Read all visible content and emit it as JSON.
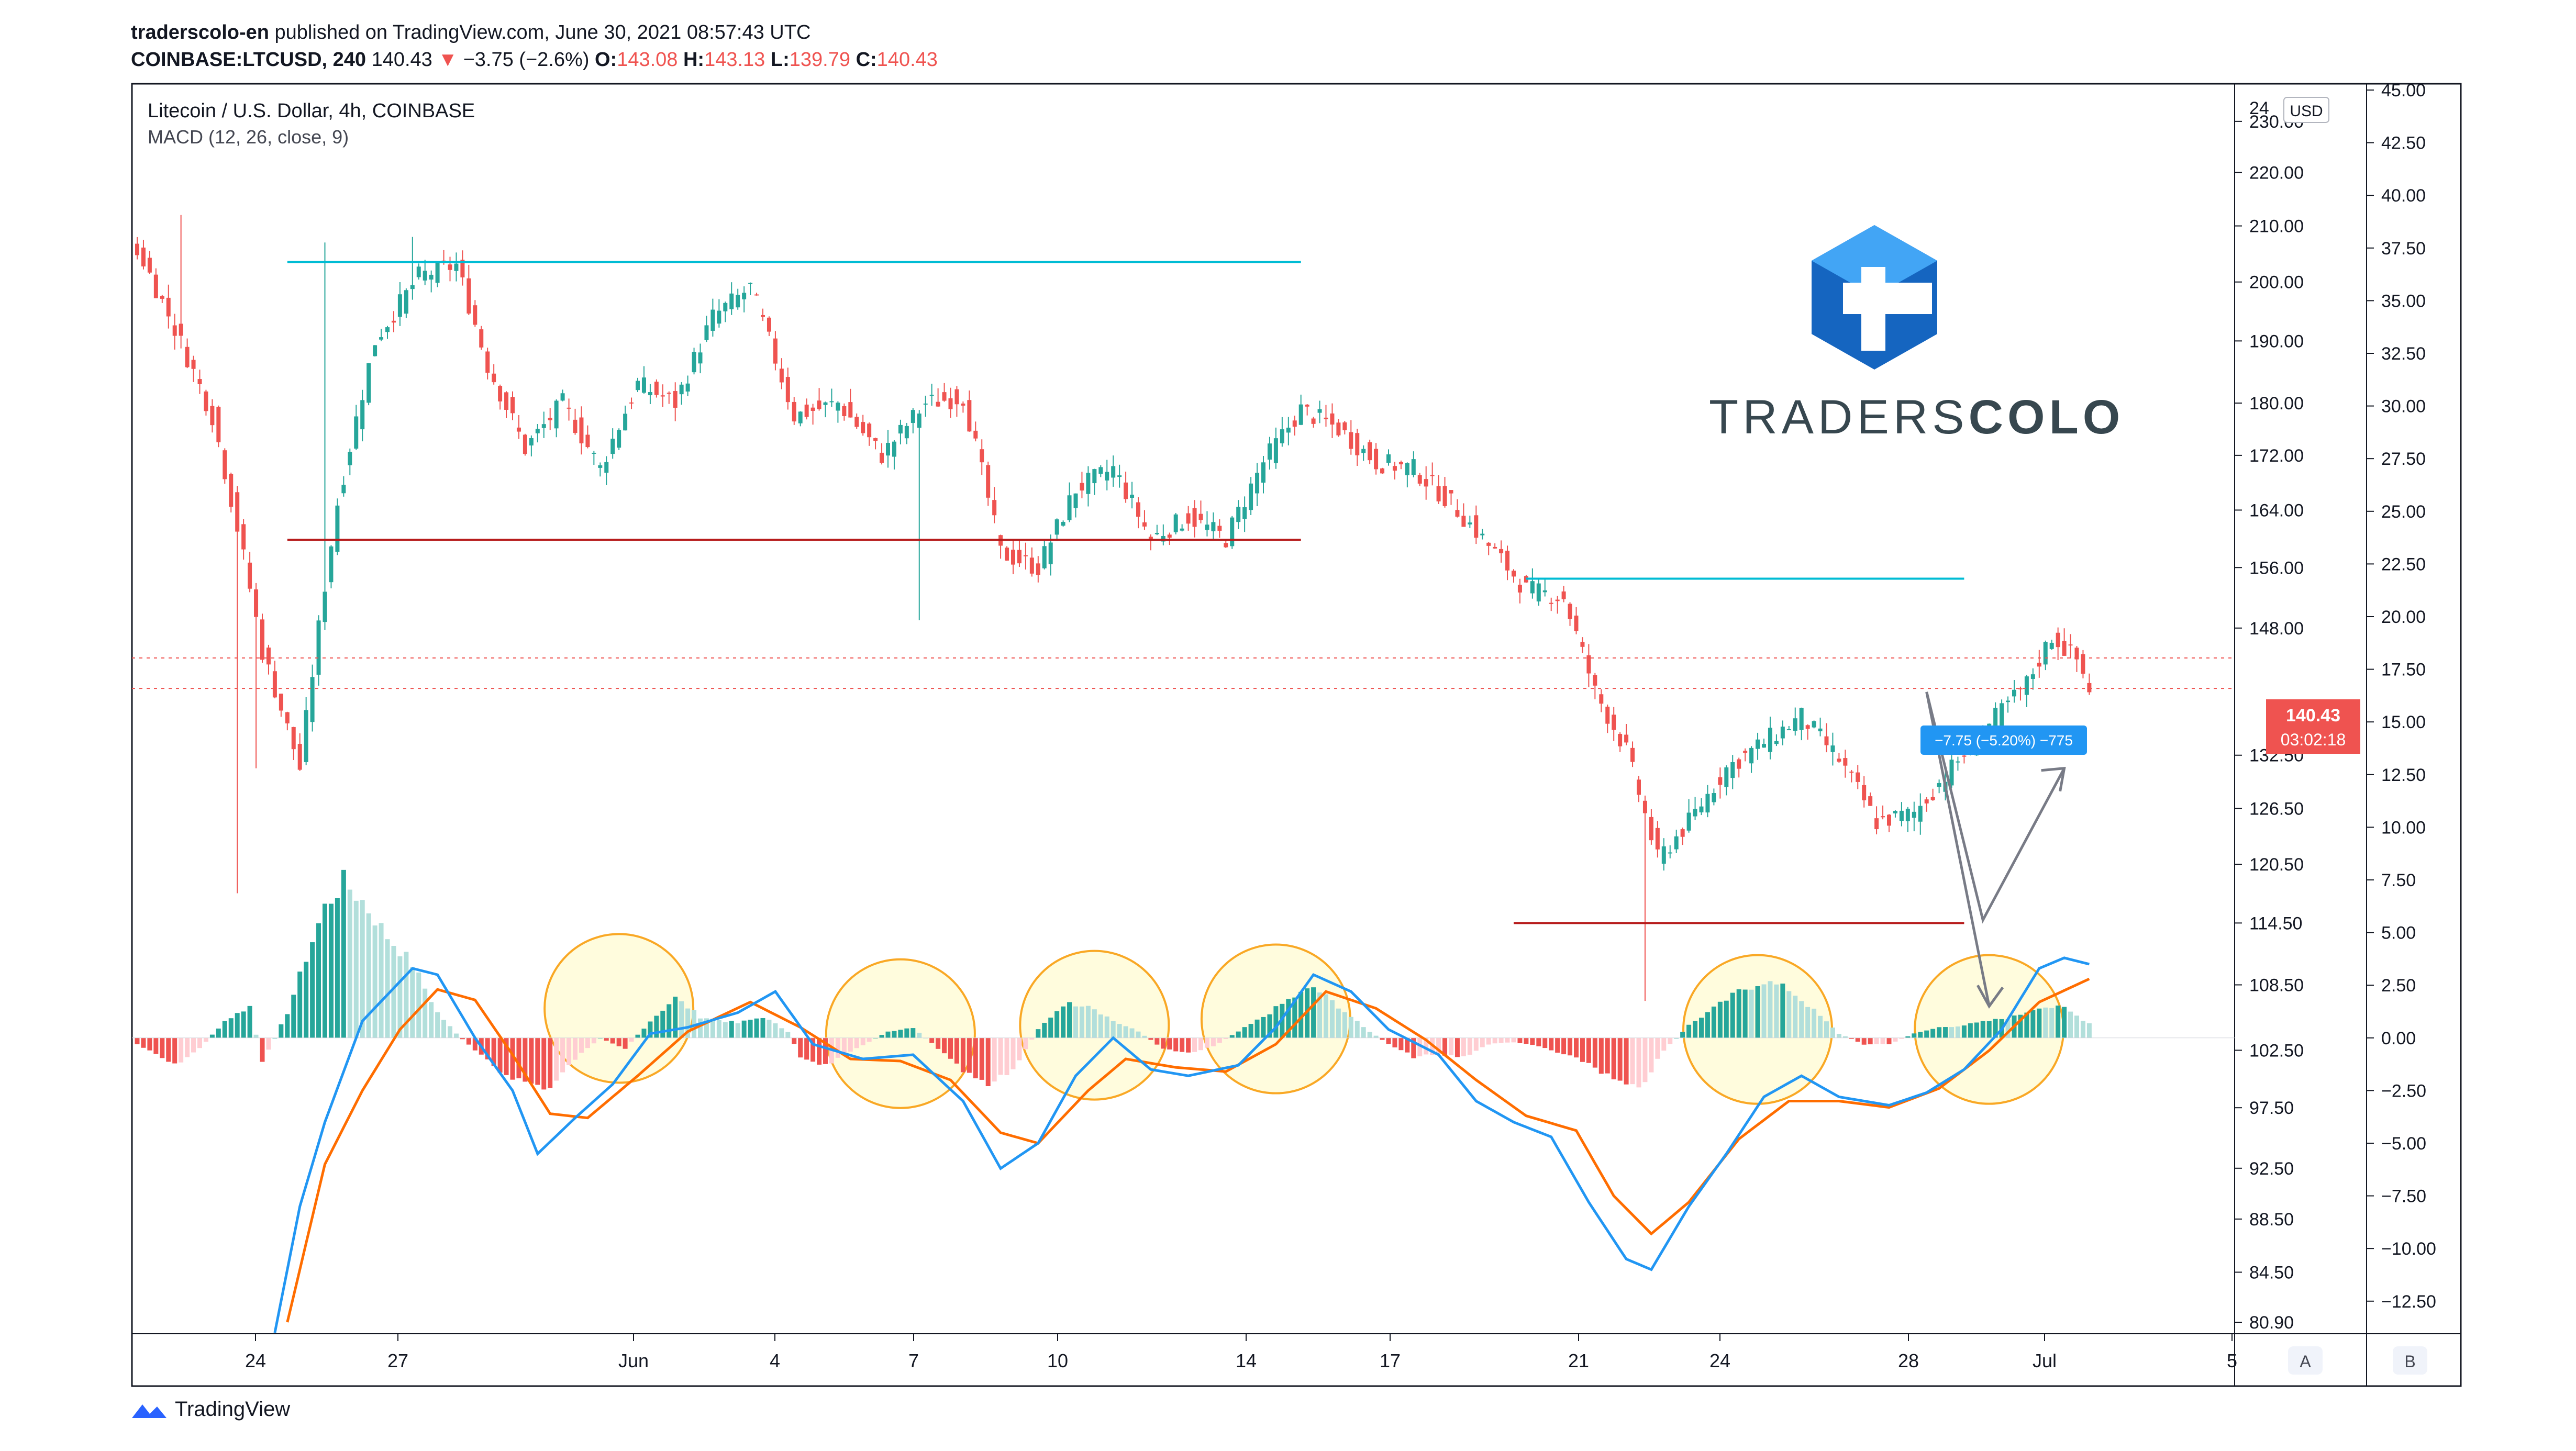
{
  "header": {
    "publisher": "traderscolo-en",
    "published_text": "published on TradingView.com, June 30, 2021 08:57:43 UTC",
    "symbol": "COINBASE:LTCUSD, 240",
    "last": "140.43",
    "change": "−3.75 (−2.6%)",
    "o_label": "O:",
    "o_value": "143.08",
    "h_label": "H:",
    "h_value": "143.13",
    "l_label": "L:",
    "l_value": "139.79",
    "c_label": "C:",
    "c_value": "140.43"
  },
  "legend": {
    "main_series": "Litecoin / U.S. Dollar, 4h, COINBASE",
    "indicator": "MACD (12, 26, close, 9)"
  },
  "watermark": {
    "text_light": "TRADERS",
    "text_bold": "COLO"
  },
  "footer": {
    "brand": "TradingView"
  },
  "price_axis": {
    "currency_badge": "USD",
    "labels": [
      "24",
      "230.00",
      "220.00",
      "210.00",
      "200.00",
      "190.00",
      "180.00",
      "172.00",
      "164.00",
      "156.00",
      "148.00",
      "140.43",
      "132.50",
      "126.50",
      "120.50",
      "114.50",
      "108.50",
      "102.50",
      "97.50",
      "92.50",
      "88.50",
      "84.50",
      "80.90"
    ],
    "price_tag": "140.43",
    "countdown": "03:02:18",
    "corner_label": "A"
  },
  "macd_axis": {
    "labels": [
      "45.00",
      "42.50",
      "40.00",
      "37.50",
      "35.00",
      "32.50",
      "30.00",
      "27.50",
      "25.00",
      "22.50",
      "20.00",
      "17.50",
      "15.00",
      "12.50",
      "10.00",
      "7.50",
      "5.00",
      "2.50",
      "0.00",
      "−2.50",
      "−5.00",
      "−7.50",
      "−10.00",
      "−12.50"
    ],
    "corner_label": "B"
  },
  "time_axis": {
    "labels": [
      "24",
      "27",
      "Jun",
      "4",
      "7",
      "10",
      "14",
      "17",
      "21",
      "24",
      "28",
      "Jul",
      "5"
    ]
  },
  "measure_label": "−7.75 (−5.20%) −775",
  "colors": {
    "up": "#26a69a",
    "down": "#ef5350",
    "up_light": "#b2dfdb",
    "down_light": "#ffcdd2",
    "macd_line": "#2196f3",
    "signal_line": "#ff6d00",
    "resistance": "#00bcd4",
    "support": "#b71c1c",
    "circle_fill": "#fff59d",
    "circle_stroke": "#f9a825",
    "brand_blue": "#1565c0",
    "brand_light": "#42a5f5"
  },
  "chart_data": [
    {
      "type": "candlestick",
      "title": "Litecoin / U.S. Dollar, 4h, COINBASE",
      "xlabel": "",
      "ylabel": "",
      "ylim": [
        80.9,
        234
      ],
      "scale": "log",
      "x_ticks": [
        "24",
        "27",
        "Jun",
        "4",
        "7",
        "10",
        "14",
        "17",
        "21",
        "24",
        "28",
        "Jul",
        "5"
      ],
      "anchors": [
        {
          "i": 0,
          "p": 206
        },
        {
          "i": 12,
          "p": 178
        },
        {
          "i": 20,
          "p": 145
        },
        {
          "i": 26,
          "p": 131
        },
        {
          "i": 32,
          "p": 165
        },
        {
          "i": 38,
          "p": 190
        },
        {
          "i": 45,
          "p": 201
        },
        {
          "i": 51,
          "p": 203
        },
        {
          "i": 56,
          "p": 186
        },
        {
          "i": 62,
          "p": 173
        },
        {
          "i": 68,
          "p": 180
        },
        {
          "i": 74,
          "p": 170
        },
        {
          "i": 80,
          "p": 183
        },
        {
          "i": 86,
          "p": 180
        },
        {
          "i": 92,
          "p": 194
        },
        {
          "i": 98,
          "p": 199
        },
        {
          "i": 105,
          "p": 178
        },
        {
          "i": 112,
          "p": 180
        },
        {
          "i": 119,
          "p": 172
        },
        {
          "i": 126,
          "p": 180
        },
        {
          "i": 132,
          "p": 181
        },
        {
          "i": 138,
          "p": 158
        },
        {
          "i": 144,
          "p": 156
        },
        {
          "i": 150,
          "p": 167
        },
        {
          "i": 156,
          "p": 170
        },
        {
          "i": 162,
          "p": 160
        },
        {
          "i": 168,
          "p": 163
        },
        {
          "i": 174,
          "p": 160
        },
        {
          "i": 180,
          "p": 171
        },
        {
          "i": 186,
          "p": 179
        },
        {
          "i": 192,
          "p": 176
        },
        {
          "i": 198,
          "p": 171
        },
        {
          "i": 204,
          "p": 170
        },
        {
          "i": 210,
          "p": 165
        },
        {
          "i": 216,
          "p": 159
        },
        {
          "i": 222,
          "p": 153
        },
        {
          "i": 228,
          "p": 152
        },
        {
          "i": 233,
          "p": 140
        },
        {
          "i": 238,
          "p": 133
        },
        {
          "i": 243,
          "p": 121
        },
        {
          "i": 248,
          "p": 125
        },
        {
          "i": 254,
          "p": 131
        },
        {
          "i": 260,
          "p": 134
        },
        {
          "i": 266,
          "p": 137
        },
        {
          "i": 272,
          "p": 132
        },
        {
          "i": 278,
          "p": 125
        },
        {
          "i": 284,
          "p": 126
        },
        {
          "i": 290,
          "p": 131
        },
        {
          "i": 296,
          "p": 136
        },
        {
          "i": 302,
          "p": 141
        },
        {
          "i": 306,
          "p": 147
        },
        {
          "i": 310,
          "p": 144
        },
        {
          "i": 312,
          "p": 140.43
        }
      ],
      "wicks": [
        {
          "i": 16,
          "low": 117.5
        },
        {
          "i": 19,
          "low": 131
        },
        {
          "i": 7,
          "high": 212
        },
        {
          "i": 30,
          "high": 207
        },
        {
          "i": 44,
          "high": 208
        },
        {
          "i": 48,
          "high": 203
        },
        {
          "i": 125,
          "low": 149
        },
        {
          "i": 241,
          "low": 107
        }
      ]
    },
    {
      "type": "macd",
      "title": "MACD (12, 26, close, 9)",
      "ylim": [
        -13.5,
        45
      ],
      "zero": 0.0,
      "macd_anchors": [
        {
          "i": 22,
          "v": -14
        },
        {
          "i": 26,
          "v": -8
        },
        {
          "i": 30,
          "v": -4
        },
        {
          "i": 36,
          "v": 0.8
        },
        {
          "i": 44,
          "v": 3.3
        },
        {
          "i": 48,
          "v": 3.0
        },
        {
          "i": 54,
          "v": 0
        },
        {
          "i": 60,
          "v": -2.5
        },
        {
          "i": 64,
          "v": -5.5
        },
        {
          "i": 70,
          "v": -3.8
        },
        {
          "i": 76,
          "v": -2.2
        },
        {
          "i": 82,
          "v": 0.2
        },
        {
          "i": 88,
          "v": 0.5
        },
        {
          "i": 96,
          "v": 1.2
        },
        {
          "i": 102,
          "v": 2.2
        },
        {
          "i": 108,
          "v": -0.3
        },
        {
          "i": 116,
          "v": -1.0
        },
        {
          "i": 124,
          "v": -0.8
        },
        {
          "i": 132,
          "v": -3
        },
        {
          "i": 138,
          "v": -6.2
        },
        {
          "i": 144,
          "v": -5.0
        },
        {
          "i": 150,
          "v": -1.8
        },
        {
          "i": 156,
          "v": 0
        },
        {
          "i": 162,
          "v": -1.5
        },
        {
          "i": 168,
          "v": -1.8
        },
        {
          "i": 176,
          "v": -1.3
        },
        {
          "i": 182,
          "v": 0.5
        },
        {
          "i": 188,
          "v": 3.0
        },
        {
          "i": 194,
          "v": 2.2
        },
        {
          "i": 200,
          "v": 0.4
        },
        {
          "i": 208,
          "v": -0.8
        },
        {
          "i": 214,
          "v": -3.0
        },
        {
          "i": 220,
          "v": -4.0
        },
        {
          "i": 226,
          "v": -4.7
        },
        {
          "i": 232,
          "v": -7.8
        },
        {
          "i": 238,
          "v": -10.5
        },
        {
          "i": 242,
          "v": -11.0
        },
        {
          "i": 248,
          "v": -8.0
        },
        {
          "i": 254,
          "v": -5.5
        },
        {
          "i": 260,
          "v": -2.8
        },
        {
          "i": 266,
          "v": -1.8
        },
        {
          "i": 272,
          "v": -2.8
        },
        {
          "i": 280,
          "v": -3.2
        },
        {
          "i": 286,
          "v": -2.6
        },
        {
          "i": 292,
          "v": -1.5
        },
        {
          "i": 298,
          "v": 0.4
        },
        {
          "i": 304,
          "v": 3.3
        },
        {
          "i": 308,
          "v": 3.8
        },
        {
          "i": 312,
          "v": 3.5
        }
      ],
      "signal_anchors": [
        {
          "i": 24,
          "v": -13.5
        },
        {
          "i": 30,
          "v": -6
        },
        {
          "i": 36,
          "v": -2.5
        },
        {
          "i": 42,
          "v": 0.4
        },
        {
          "i": 48,
          "v": 2.3
        },
        {
          "i": 54,
          "v": 1.8
        },
        {
          "i": 60,
          "v": -0.8
        },
        {
          "i": 66,
          "v": -3.6
        },
        {
          "i": 72,
          "v": -3.8
        },
        {
          "i": 80,
          "v": -1.8
        },
        {
          "i": 88,
          "v": 0.3
        },
        {
          "i": 98,
          "v": 1.7
        },
        {
          "i": 106,
          "v": 0.5
        },
        {
          "i": 114,
          "v": -1.0
        },
        {
          "i": 122,
          "v": -1.1
        },
        {
          "i": 130,
          "v": -2.0
        },
        {
          "i": 138,
          "v": -4.5
        },
        {
          "i": 144,
          "v": -5.0
        },
        {
          "i": 152,
          "v": -2.5
        },
        {
          "i": 158,
          "v": -1.0
        },
        {
          "i": 166,
          "v": -1.4
        },
        {
          "i": 174,
          "v": -1.6
        },
        {
          "i": 182,
          "v": -0.3
        },
        {
          "i": 190,
          "v": 2.2
        },
        {
          "i": 198,
          "v": 1.4
        },
        {
          "i": 206,
          "v": -0.1
        },
        {
          "i": 214,
          "v": -2.0
        },
        {
          "i": 222,
          "v": -3.7
        },
        {
          "i": 230,
          "v": -4.4
        },
        {
          "i": 236,
          "v": -7.5
        },
        {
          "i": 242,
          "v": -9.3
        },
        {
          "i": 248,
          "v": -7.8
        },
        {
          "i": 256,
          "v": -4.8
        },
        {
          "i": 264,
          "v": -3.0
        },
        {
          "i": 272,
          "v": -3.0
        },
        {
          "i": 280,
          "v": -3.3
        },
        {
          "i": 288,
          "v": -2.4
        },
        {
          "i": 296,
          "v": -0.6
        },
        {
          "i": 304,
          "v": 1.7
        },
        {
          "i": 312,
          "v": 2.8
        }
      ],
      "histogram_anchors": [
        {
          "i": 0,
          "v": -0.3
        },
        {
          "i": 6,
          "v": -1.3
        },
        {
          "i": 10,
          "v": -0.5
        },
        {
          "i": 14,
          "v": 0.8
        },
        {
          "i": 18,
          "v": 1.5
        },
        {
          "i": 20,
          "v": -1.2
        },
        {
          "i": 24,
          "v": 1.2
        },
        {
          "i": 27,
          "v": 3.8
        },
        {
          "i": 30,
          "v": 6.2
        },
        {
          "i": 33,
          "v": 7.4
        },
        {
          "i": 36,
          "v": 6.5
        },
        {
          "i": 40,
          "v": 4.8
        },
        {
          "i": 44,
          "v": 3.5
        },
        {
          "i": 48,
          "v": 1.2
        },
        {
          "i": 51,
          "v": 0.2
        },
        {
          "i": 54,
          "v": -0.6
        },
        {
          "i": 58,
          "v": -1.6
        },
        {
          "i": 62,
          "v": -2.1
        },
        {
          "i": 66,
          "v": -2.4
        },
        {
          "i": 70,
          "v": -1.0
        },
        {
          "i": 74,
          "v": 0.0
        },
        {
          "i": 78,
          "v": -0.5
        },
        {
          "i": 82,
          "v": 0.8
        },
        {
          "i": 86,
          "v": 1.9
        },
        {
          "i": 90,
          "v": 1.0
        },
        {
          "i": 96,
          "v": 0.7
        },
        {
          "i": 100,
          "v": 1.0
        },
        {
          "i": 104,
          "v": 0.3
        },
        {
          "i": 106,
          "v": -0.9
        },
        {
          "i": 110,
          "v": -1.3
        },
        {
          "i": 114,
          "v": -0.7
        },
        {
          "i": 118,
          "v": 0.0
        },
        {
          "i": 120,
          "v": 0.3
        },
        {
          "i": 124,
          "v": 0.5
        },
        {
          "i": 128,
          "v": -0.5
        },
        {
          "i": 132,
          "v": -1.6
        },
        {
          "i": 136,
          "v": -2.3
        },
        {
          "i": 140,
          "v": -1.5
        },
        {
          "i": 144,
          "v": 0.4
        },
        {
          "i": 148,
          "v": 1.6
        },
        {
          "i": 152,
          "v": 1.6
        },
        {
          "i": 156,
          "v": 0.8
        },
        {
          "i": 160,
          "v": 0.3
        },
        {
          "i": 164,
          "v": -0.5
        },
        {
          "i": 168,
          "v": -0.7
        },
        {
          "i": 172,
          "v": -0.4
        },
        {
          "i": 176,
          "v": 0.3
        },
        {
          "i": 180,
          "v": 1.0
        },
        {
          "i": 184,
          "v": 1.8
        },
        {
          "i": 188,
          "v": 2.4
        },
        {
          "i": 192,
          "v": 1.5
        },
        {
          "i": 196,
          "v": 0.5
        },
        {
          "i": 200,
          "v": -0.3
        },
        {
          "i": 204,
          "v": -0.9
        },
        {
          "i": 208,
          "v": -0.8
        },
        {
          "i": 212,
          "v": -0.9
        },
        {
          "i": 216,
          "v": -0.3
        },
        {
          "i": 220,
          "v": -0.2
        },
        {
          "i": 224,
          "v": -0.4
        },
        {
          "i": 228,
          "v": -0.8
        },
        {
          "i": 232,
          "v": -1.2
        },
        {
          "i": 236,
          "v": -2.0
        },
        {
          "i": 240,
          "v": -2.5
        },
        {
          "i": 244,
          "v": -0.6
        },
        {
          "i": 248,
          "v": 0.6
        },
        {
          "i": 252,
          "v": 1.4
        },
        {
          "i": 256,
          "v": 2.2
        },
        {
          "i": 260,
          "v": 2.7
        },
        {
          "i": 264,
          "v": 2.3
        },
        {
          "i": 268,
          "v": 1.3
        },
        {
          "i": 272,
          "v": 0.2
        },
        {
          "i": 276,
          "v": -0.3
        },
        {
          "i": 280,
          "v": -0.3
        },
        {
          "i": 284,
          "v": 0.2
        },
        {
          "i": 288,
          "v": 0.5
        },
        {
          "i": 292,
          "v": 0.6
        },
        {
          "i": 296,
          "v": 0.8
        },
        {
          "i": 300,
          "v": 1.0
        },
        {
          "i": 304,
          "v": 1.5
        },
        {
          "i": 308,
          "v": 1.4
        },
        {
          "i": 312,
          "v": 0.7
        }
      ]
    }
  ],
  "drawings": {
    "resistance_top": {
      "price": 203.5,
      "from_i": 24,
      "to_i": 186
    },
    "support_mid": {
      "price": 159.8,
      "from_i": 24,
      "to_i": 186
    },
    "resistance_right": {
      "price": 154.5,
      "from_i": 222,
      "to_i": 292
    },
    "support_bottom": {
      "price": 114.5,
      "from_i": 220,
      "to_i": 292
    },
    "reference_lines": [
      {
        "price": 144.2
      },
      {
        "price": 140.43
      }
    ],
    "arrow_down": {
      "from": {
        "i": 286,
        "p": 140.0
      },
      "mid": {
        "i": 295,
        "p": 114.8
      },
      "to": {
        "i": 308,
        "p": 131.0
      }
    },
    "arrow_second": {
      "from": {
        "i": 286,
        "p": 140.0
      },
      "to": {
        "i": 296,
        "p": 106.5
      }
    },
    "circles": [
      {
        "i": 77,
        "v": 1.4
      },
      {
        "i": 122,
        "v": 0.2
      },
      {
        "i": 153,
        "v": 0.6
      },
      {
        "i": 182,
        "v": 0.9
      },
      {
        "i": 259,
        "v": 0.4
      },
      {
        "i": 296,
        "v": 0.4
      }
    ]
  }
}
